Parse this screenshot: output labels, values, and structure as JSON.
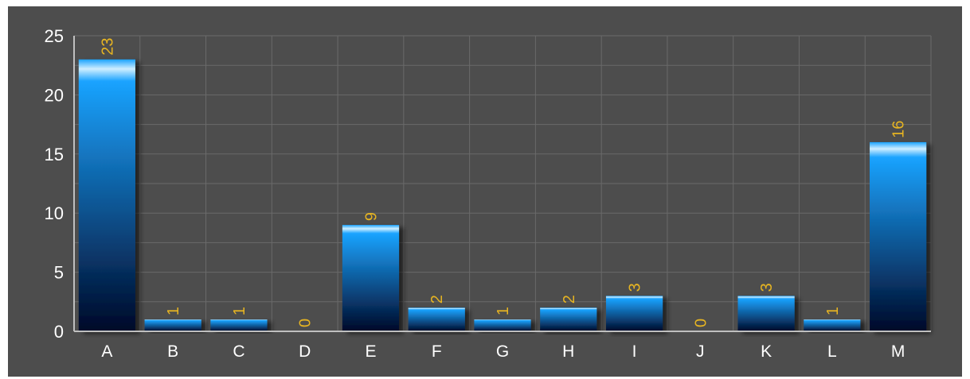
{
  "chart_data": {
    "type": "bar",
    "title": "",
    "xlabel": "",
    "ylabel": "",
    "categories": [
      "A",
      "B",
      "C",
      "D",
      "E",
      "F",
      "G",
      "H",
      "I",
      "J",
      "K",
      "L",
      "M"
    ],
    "values": [
      23,
      1,
      1,
      0,
      9,
      2,
      1,
      2,
      3,
      0,
      3,
      1,
      16
    ],
    "ylim": [
      0,
      25
    ],
    "yticks": [
      0,
      5,
      10,
      15,
      20,
      25
    ],
    "grid": true,
    "data_labels": "rotated above bars",
    "colors": {
      "background": "#4d4d4d",
      "grid": "#6a6a6a",
      "axis": "#bfbfbf",
      "bar_top": "#1aa3ff",
      "bar_highlight": "#cfeeff",
      "bar_bottom": "#000828",
      "value_label": "#e6b422",
      "tick_text": "#ffffff"
    }
  }
}
